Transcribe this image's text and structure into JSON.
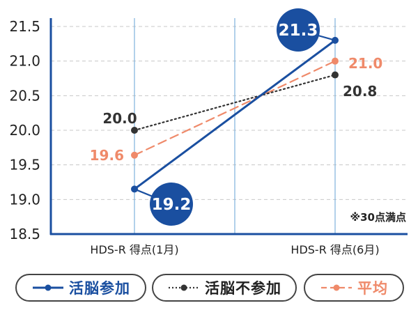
{
  "chart_data": {
    "type": "line",
    "categories": [
      "HDS-R 得点(1月)",
      "HDS-R 得点(6月)"
    ],
    "series": [
      {
        "name": "活脳参加",
        "values": [
          19.15,
          21.3
        ],
        "labels": [
          "19.2",
          "21.3"
        ],
        "color": "#1a4fa0",
        "style": "solid"
      },
      {
        "name": "活脳不参加",
        "values": [
          20.0,
          20.8
        ],
        "labels": [
          "20.0",
          "20.8"
        ],
        "color": "#333333",
        "style": "dotted"
      },
      {
        "name": "平均",
        "values": [
          19.64,
          21.0
        ],
        "labels": [
          "19.6",
          "21.0"
        ],
        "color": "#ef8a6a",
        "style": "dashed"
      }
    ],
    "y_ticks": [
      "18.5",
      "19.0",
      "19.5",
      "20.0",
      "20.5",
      "21.0",
      "21.5"
    ],
    "ylim": [
      18.5,
      21.6
    ],
    "grid": true,
    "legend_position": "bottom",
    "note": "※30点満点",
    "axis_color": "#1a4fa0",
    "grid_color": "#c8c8c8",
    "category_line_color": "#7fb2dc"
  }
}
